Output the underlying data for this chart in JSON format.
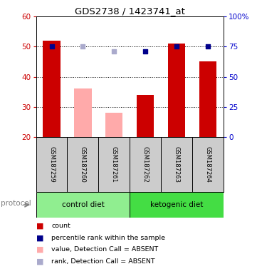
{
  "title": "GDS2738 / 1423741_at",
  "samples": [
    "GSM187259",
    "GSM187260",
    "GSM187261",
    "GSM187262",
    "GSM187263",
    "GSM187264"
  ],
  "bar_heights": [
    52,
    36,
    28,
    34,
    51,
    45
  ],
  "bar_colors": [
    "#cc0000",
    "#ffaaaa",
    "#ffaaaa",
    "#cc0000",
    "#cc0000",
    "#cc0000"
  ],
  "percentile_ranks": [
    75,
    null,
    null,
    71,
    75,
    75
  ],
  "absent_ranks": [
    null,
    75,
    71,
    null,
    null,
    null
  ],
  "present_dot_color": "#00008B",
  "absent_dot_color": "#aaaacc",
  "ylim_left": [
    20,
    60
  ],
  "ylim_right": [
    0,
    100
  ],
  "yticks_left": [
    20,
    30,
    40,
    50,
    60
  ],
  "yticks_right": [
    0,
    25,
    50,
    75,
    100
  ],
  "ytick_labels_right": [
    "0",
    "25",
    "50",
    "75",
    "100%"
  ],
  "groups": [
    {
      "label": "control diet",
      "indices": [
        0,
        1,
        2
      ],
      "color": "#90EE90"
    },
    {
      "label": "ketogenic diet",
      "indices": [
        3,
        4,
        5
      ],
      "color": "#44dd44"
    }
  ],
  "protocol_label": "protocol",
  "legend_items": [
    {
      "color": "#cc0000",
      "label": "count"
    },
    {
      "color": "#00008B",
      "label": "percentile rank within the sample"
    },
    {
      "color": "#ffaaaa",
      "label": "value, Detection Call = ABSENT"
    },
    {
      "color": "#aaaacc",
      "label": "rank, Detection Call = ABSENT"
    }
  ],
  "background_color": "#ffffff",
  "plot_bg_color": "#ffffff",
  "tick_label_color_left": "#cc0000",
  "tick_label_color_right": "#0000cc",
  "sample_label_bg": "#cccccc",
  "bar_width": 0.55
}
